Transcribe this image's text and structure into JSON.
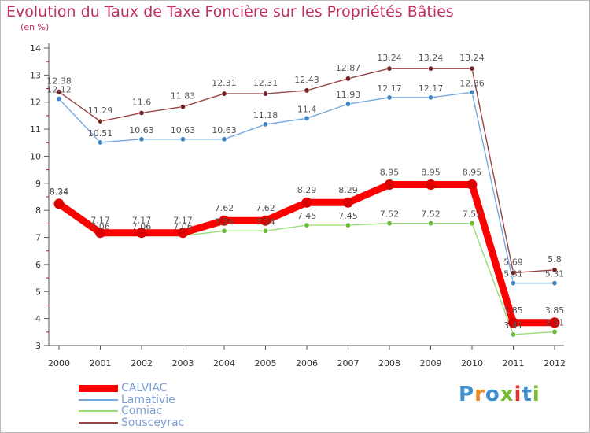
{
  "title": "Evolution du Taux de Taxe Foncière sur les Propriétés Bâties",
  "subtitle": "(en %)",
  "logo": "Proxiti",
  "chart_data": {
    "type": "line",
    "title": "Evolution du Taux de Taxe Foncière sur les Propriétés Bâties",
    "ylabel": "(en %)",
    "xlabel": "",
    "categories": [
      "2000",
      "2001",
      "2002",
      "2003",
      "2004",
      "2005",
      "2006",
      "2007",
      "2008",
      "2009",
      "2010",
      "2011",
      "2012"
    ],
    "yticks": [
      3,
      4,
      5,
      6,
      7,
      8,
      9,
      10,
      11,
      12,
      13,
      14
    ],
    "ylim": [
      3,
      14
    ],
    "grid": false,
    "legend_position": "bottom-left",
    "series": [
      {
        "name": "CALVIAC",
        "color": "#ff0000",
        "marker": "#dd0000",
        "values": [
          8.24,
          7.17,
          7.17,
          7.17,
          7.62,
          7.62,
          8.29,
          8.29,
          8.95,
          8.95,
          8.95,
          3.85,
          3.85
        ],
        "labels": [
          "8.24",
          "7.17",
          "7.17",
          "7.17",
          "7.62",
          "7.62",
          "8.29",
          "8.29",
          "8.95",
          "8.95",
          "8.95",
          "3.85",
          "3.85"
        ]
      },
      {
        "name": "Lamativie",
        "color": "#77a9dd",
        "marker": "#3d86c6",
        "values": [
          12.12,
          10.51,
          10.63,
          10.63,
          10.63,
          11.18,
          11.4,
          11.93,
          12.17,
          12.17,
          12.36,
          5.31,
          5.31
        ],
        "labels": [
          "12.12",
          "10.51",
          "10.63",
          "10.63",
          "10.63",
          "11.18",
          "11.4",
          "11.93",
          "12.17",
          "12.17",
          "12.36",
          "5.31",
          "5.31"
        ]
      },
      {
        "name": "Comiac",
        "color": "#99dd77",
        "marker": "#66bb33",
        "values": [
          8.34,
          7.06,
          7.06,
          7.06,
          7.24,
          7.24,
          7.45,
          7.45,
          7.52,
          7.52,
          7.52,
          3.41,
          3.51
        ],
        "labels": [
          "8.34",
          "7.06",
          "7.06",
          "7.06",
          "7.24",
          "7.24",
          "7.45",
          "7.45",
          "7.52",
          "7.52",
          "7.52",
          "3.41",
          "3.51"
        ]
      },
      {
        "name": "Sousceyrac",
        "color": "#994444",
        "marker": "#772222",
        "values": [
          12.38,
          11.29,
          11.6,
          11.83,
          12.31,
          12.31,
          12.43,
          12.87,
          13.24,
          13.24,
          13.24,
          5.69,
          5.8
        ],
        "labels": [
          "12.38",
          "11.29",
          "11.6",
          "11.83",
          "12.31",
          "12.31",
          "12.43",
          "12.87",
          "13.24",
          "13.24",
          "13.24",
          "5.69",
          "5.8"
        ]
      }
    ]
  }
}
